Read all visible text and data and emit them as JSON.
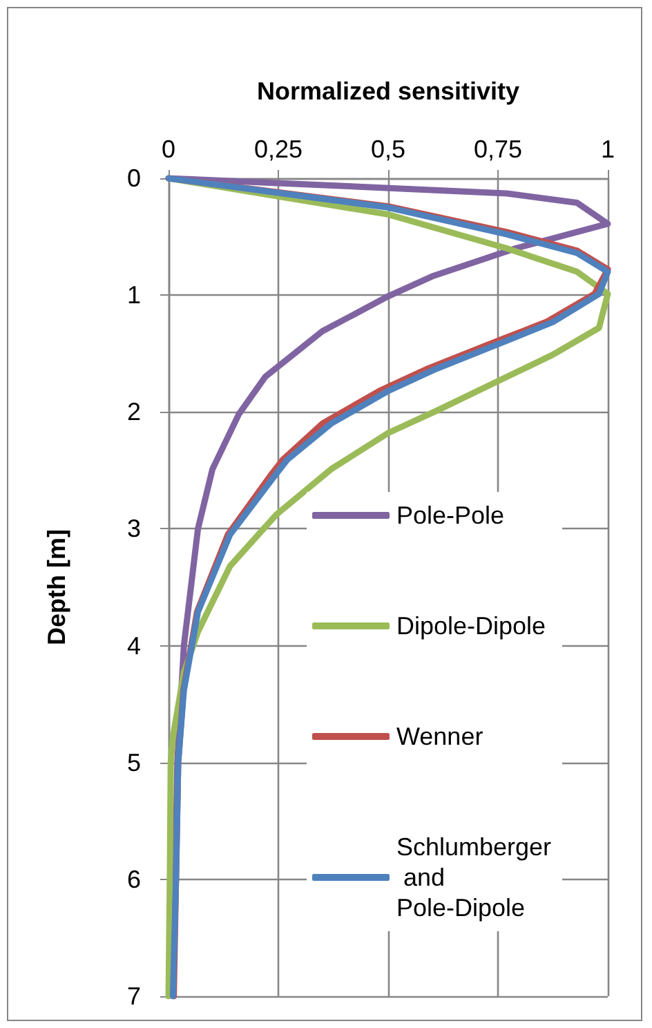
{
  "chart_data": {
    "type": "line",
    "xlabel": "Normalized sensitivity",
    "ylabel": "Depth [m]",
    "xlim": [
      0,
      1
    ],
    "xticks": [
      0,
      {
        "value": 0.25,
        "label": "0,25"
      },
      {
        "value": 0.5,
        "label": "0,5"
      },
      {
        "value": 0.75,
        "label": "0,75"
      },
      1
    ],
    "ylim": [
      7,
      0
    ],
    "yticks": [
      0,
      1,
      2,
      3,
      4,
      5,
      6,
      7
    ],
    "grid": true,
    "legend": "bottom right",
    "marker": "none",
    "line_style": "solid",
    "series": [
      {
        "name": "Pole-Pole",
        "color": "#8064a2",
        "x": [
          0,
          0.3,
          0.77,
          0.93,
          1,
          0.79,
          0.6,
          0.5,
          0.35,
          0.22,
          0.16,
          0.1,
          0.067,
          0.035,
          0.02,
          0.015,
          0.01
        ],
        "values": [
          0,
          0.05,
          0.13,
          0.21,
          0.39,
          0.6,
          0.84,
          1.01,
          1.31,
          1.7,
          2.02,
          2.49,
          3,
          4,
          5,
          6,
          7
        ]
      },
      {
        "name": "Dipole-Dipole",
        "color": "#9bbb59",
        "x": [
          0,
          0.5,
          0.77,
          0.93,
          1,
          0.98,
          0.875,
          0.77,
          0.61,
          0.5,
          0.37,
          0.245,
          0.14,
          0.067,
          0.035,
          0.01,
          0.005,
          0.003,
          0
        ],
        "values": [
          0,
          0.31,
          0.6,
          0.8,
          0.99,
          1.28,
          1.51,
          1.7,
          1.99,
          2.18,
          2.49,
          2.88,
          3.32,
          3.88,
          4.23,
          4.78,
          5,
          6,
          7
        ]
      },
      {
        "name": "Wenner",
        "color": "#c0504d",
        "x": [
          0,
          0.5,
          0.77,
          0.93,
          1,
          0.97,
          0.86,
          0.75,
          0.59,
          0.48,
          0.35,
          0.26,
          0.235,
          0.135,
          0.065,
          0.034,
          0.022,
          0.017,
          0.012
        ],
        "values": [
          0,
          0.24,
          0.46,
          0.62,
          0.78,
          0.99,
          1.23,
          1.39,
          1.63,
          1.82,
          2.1,
          2.41,
          2.53,
          3.05,
          3.71,
          4.38,
          5,
          6,
          7
        ]
      },
      {
        "name": "Schlumberger and Pole-Dipole",
        "color": "#4f81bd",
        "x": [
          0,
          0.5,
          0.77,
          0.93,
          1,
          0.98,
          0.875,
          0.77,
          0.61,
          0.5,
          0.37,
          0.27,
          0.245,
          0.14,
          0.067,
          0.035,
          0.022,
          0.017,
          0.01
        ],
        "values": [
          0,
          0.25,
          0.48,
          0.64,
          0.8,
          0.99,
          1.23,
          1.39,
          1.63,
          1.82,
          2.1,
          2.41,
          2.53,
          3.05,
          3.71,
          4.38,
          5,
          6,
          7
        ]
      }
    ]
  }
}
